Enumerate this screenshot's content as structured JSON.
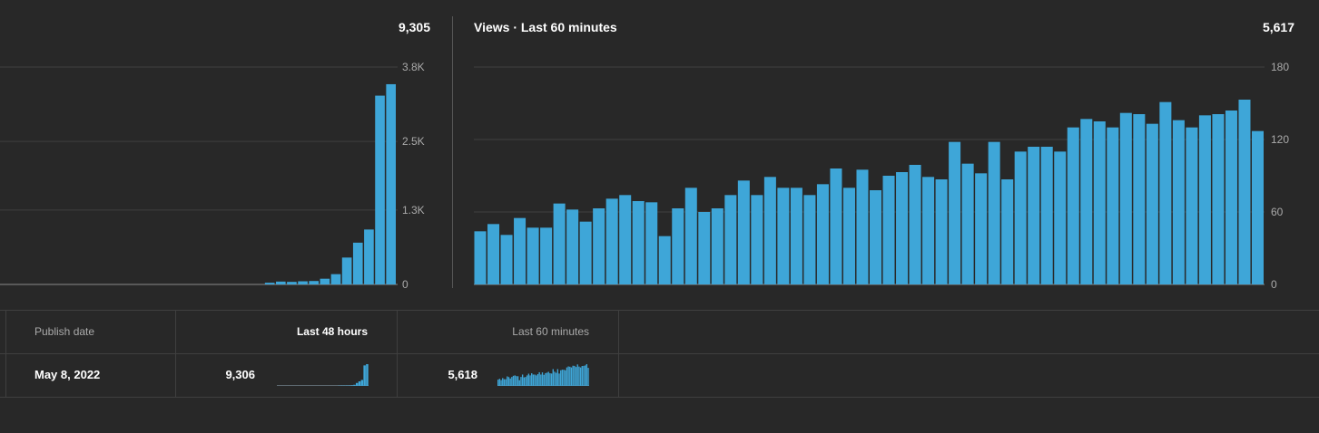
{
  "accent_color": "#3ea6d8",
  "left_card": {
    "total": "9,305"
  },
  "right_card": {
    "title": "Views · Last 60 minutes",
    "total": "5,617"
  },
  "chart_data": [
    {
      "type": "bar",
      "title": "",
      "xlabel": "",
      "ylabel": "",
      "ylim": [
        0,
        3800
      ],
      "yticks": [
        0,
        1300,
        2500,
        3800
      ],
      "ytick_labels": [
        "0",
        "1.3K",
        "2.5K",
        "3.8K"
      ],
      "grid": true,
      "values": [
        0,
        0,
        0,
        0,
        0,
        0,
        0,
        0,
        0,
        0,
        0,
        0,
        0,
        0,
        0,
        0,
        0,
        0,
        0,
        0,
        0,
        0,
        0,
        0,
        30,
        50,
        45,
        55,
        60,
        100,
        180,
        470,
        730,
        960,
        3300,
        3500
      ]
    },
    {
      "type": "bar",
      "title": "Views · Last 60 minutes",
      "xlabel": "",
      "ylabel": "",
      "ylim": [
        0,
        180
      ],
      "yticks": [
        0,
        60,
        120,
        180
      ],
      "ytick_labels": [
        "0",
        "60",
        "120",
        "180"
      ],
      "grid": true,
      "values": [
        44,
        50,
        41,
        55,
        47,
        47,
        67,
        62,
        52,
        63,
        71,
        74,
        69,
        68,
        40,
        63,
        80,
        60,
        63,
        74,
        86,
        74,
        89,
        80,
        80,
        74,
        83,
        96,
        80,
        95,
        78,
        90,
        93,
        99,
        89,
        87,
        118,
        100,
        92,
        118,
        87,
        110,
        114,
        114,
        110,
        130,
        137,
        135,
        130,
        142,
        141,
        133,
        151,
        136,
        130,
        140,
        141,
        144,
        153,
        127
      ]
    }
  ],
  "table": {
    "headers": {
      "publish_date": "Publish date",
      "last_48_hours": "Last 48 hours",
      "last_60_minutes": "Last 60 minutes"
    },
    "row": {
      "publish_date": "May 8, 2022",
      "last_48_hours": "9,306",
      "last_60_minutes": "5,618"
    }
  }
}
